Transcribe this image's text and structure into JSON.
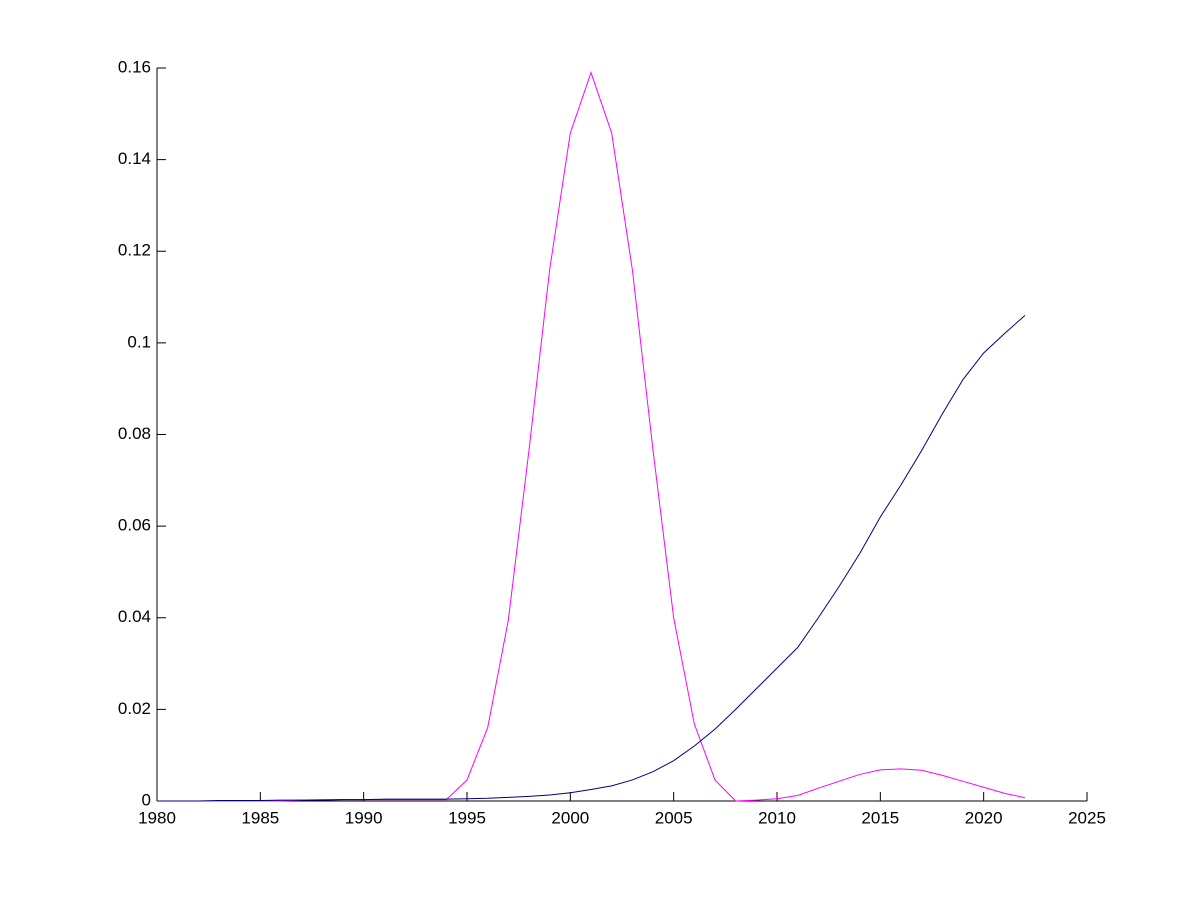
{
  "chart_data": {
    "type": "line",
    "x": [
      1980,
      1981,
      1982,
      1983,
      1984,
      1985,
      1986,
      1987,
      1988,
      1989,
      1990,
      1991,
      1992,
      1993,
      1994,
      1995,
      1996,
      1997,
      1998,
      1999,
      2000,
      2001,
      2002,
      2003,
      2004,
      2005,
      2006,
      2007,
      2008,
      2009,
      2010,
      2011,
      2012,
      2013,
      2014,
      2015,
      2016,
      2017,
      2018,
      2019,
      2020,
      2021,
      2022
    ],
    "series": [
      {
        "color": "#ff00ff",
        "values": [
          0,
          0,
          0,
          0,
          0,
          0,
          0,
          0.0002,
          0.0003,
          0.0003,
          0.0003,
          0.0003,
          0.0003,
          0.0003,
          0.0003,
          0.0046,
          0.016,
          0.0395,
          0.0766,
          0.116,
          0.1458,
          0.159,
          0.1458,
          0.116,
          0.0766,
          0.04,
          0.0168,
          0.0046,
          0,
          0.0002,
          0.0005,
          0.0012,
          0.0028,
          0.0043,
          0.0058,
          0.0068,
          0.007,
          0.0067,
          0.0056,
          0.0043,
          0.003,
          0.0017,
          0.0007
        ]
      },
      {
        "color": "#000080",
        "values": [
          0,
          0,
          0,
          0.0001,
          0.0001,
          0.0001,
          0.0002,
          0.0002,
          0.0002,
          0.0003,
          0.0003,
          0.0004,
          0.0004,
          0.0004,
          0.0004,
          0.0005,
          0.0006,
          0.0008,
          0.001,
          0.0013,
          0.0018,
          0.0025,
          0.0033,
          0.0046,
          0.0064,
          0.0088,
          0.012,
          0.0157,
          0.02,
          0.0245,
          0.029,
          0.0335,
          0.04,
          0.0468,
          0.054,
          0.062,
          0.069,
          0.0765,
          0.0845,
          0.092,
          0.0978,
          0.102,
          0.106
        ]
      }
    ],
    "xlim": [
      1980,
      2025
    ],
    "xticks": [
      1980,
      1985,
      1990,
      1995,
      2000,
      2005,
      2010,
      2015,
      2020,
      2025
    ],
    "ylim": [
      0,
      0.16
    ],
    "yticks": [
      0,
      0.02,
      0.04,
      0.06,
      0.08,
      0.1,
      0.12,
      0.14,
      0.16
    ]
  }
}
